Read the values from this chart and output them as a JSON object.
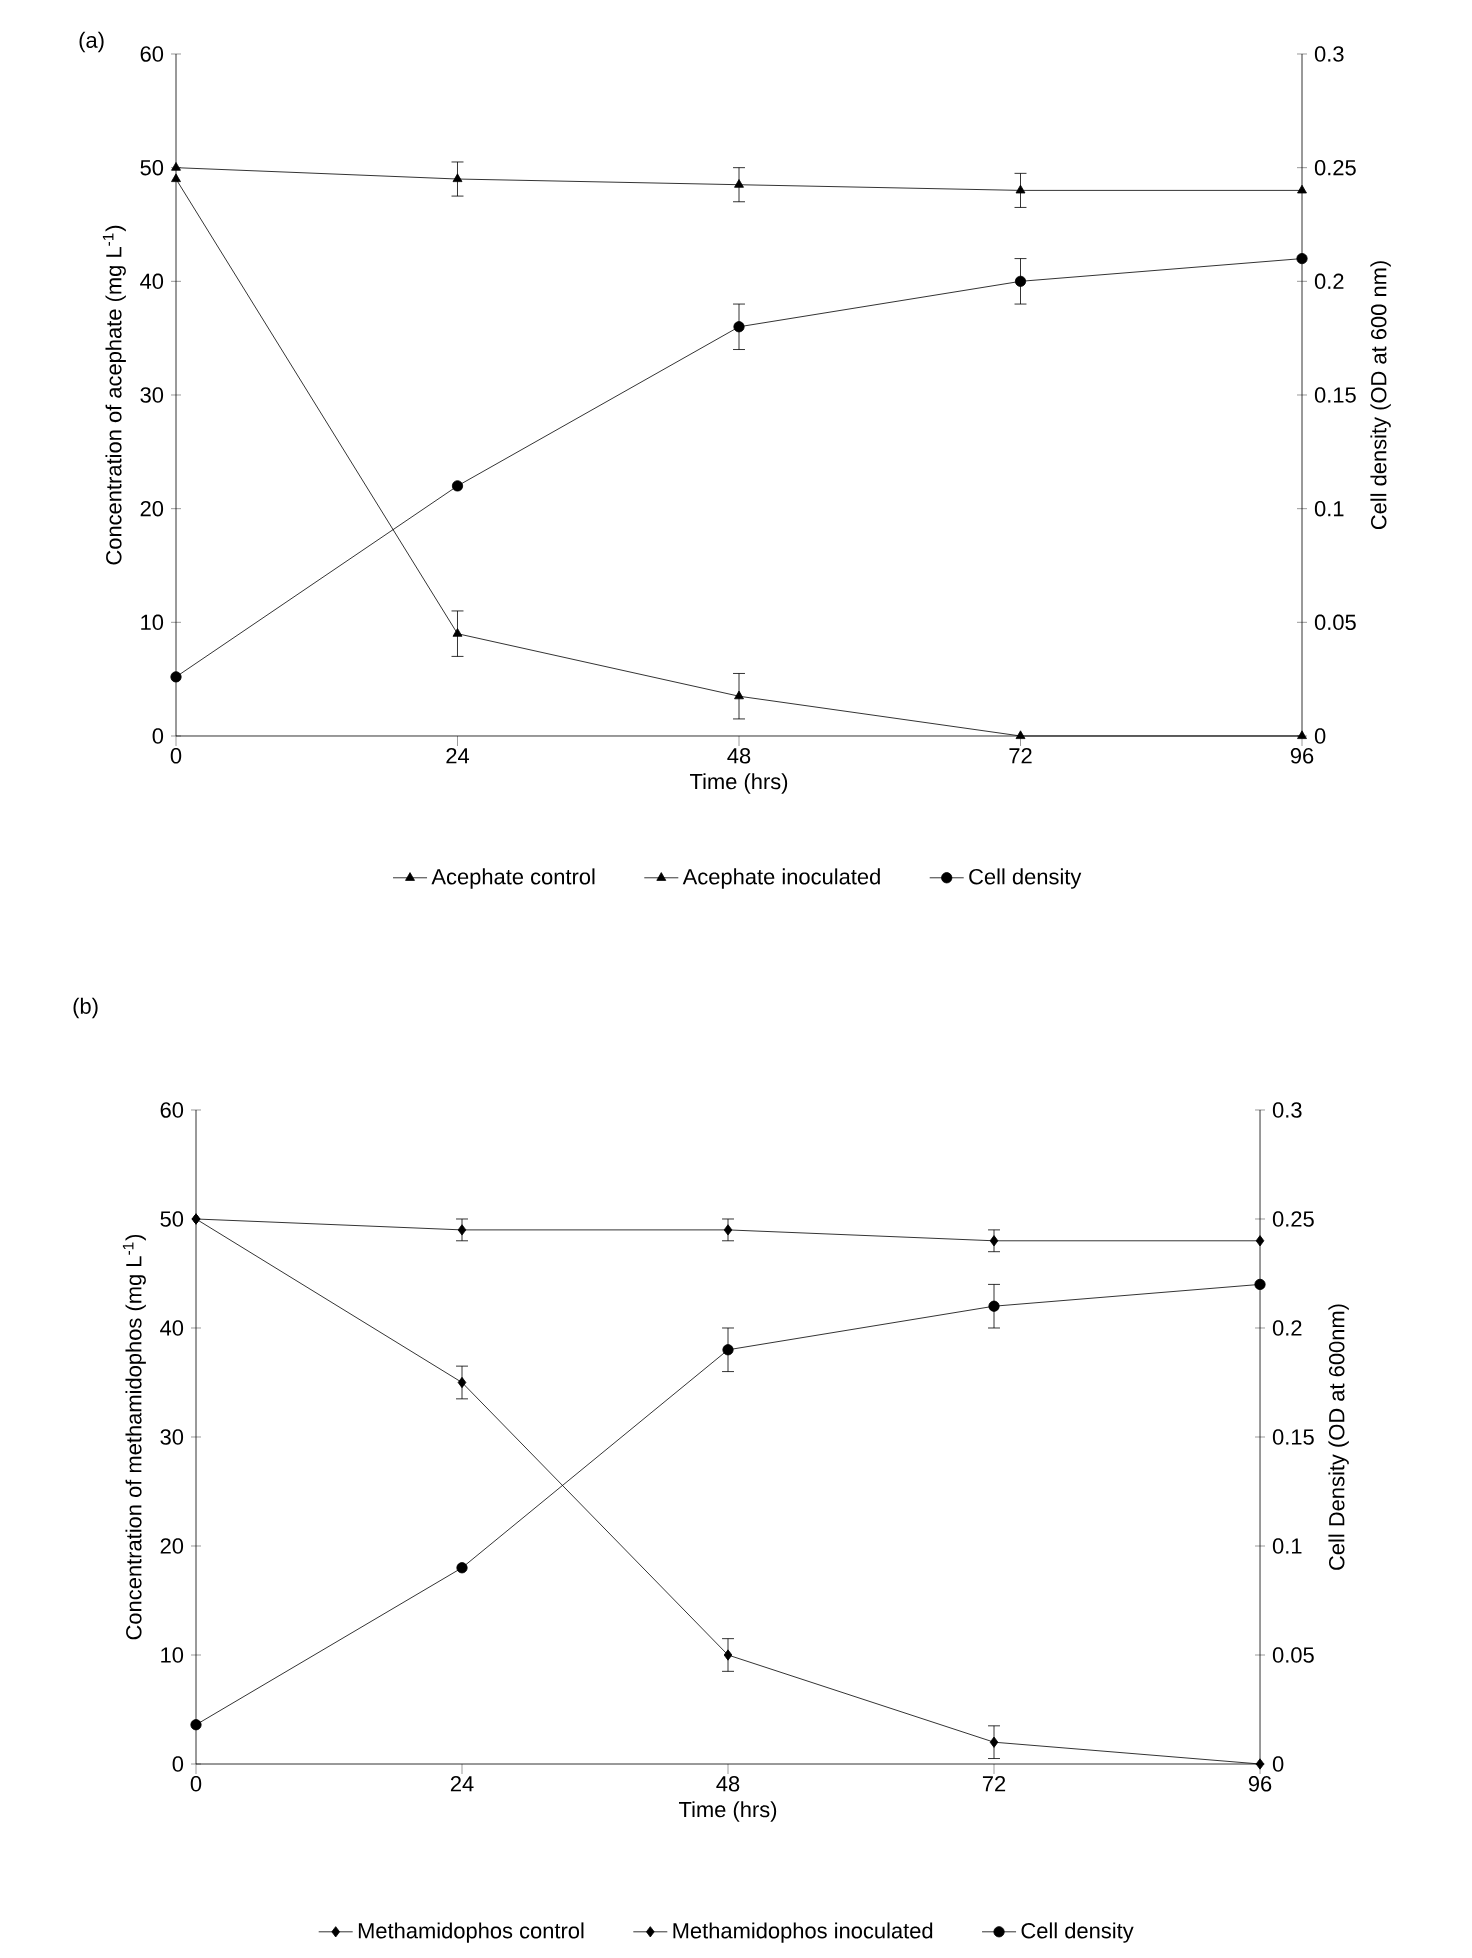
{
  "chart_data": [
    {
      "type": "line",
      "title": "(a)",
      "xlabel": "Time (hrs)",
      "ylabel": "Concentration of acephate (mg L$^{-1}$)",
      "y2label": "Cell density (OD at 600 nm)",
      "x": [
        0,
        24,
        48,
        72,
        96
      ],
      "xlim": [
        0,
        96
      ],
      "xticks": [
        0,
        24,
        48,
        72,
        96
      ],
      "ylim": [
        0,
        60
      ],
      "yticks": [
        0,
        10,
        20,
        30,
        40,
        50,
        60
      ],
      "y2lim": [
        0,
        0.3
      ],
      "y2ticks": [
        0,
        0.05,
        0.1,
        0.15,
        0.2,
        0.25,
        0.3
      ],
      "grid": false,
      "legend": "bottom",
      "line_style": "solid",
      "series": [
        {
          "name": "Acephate control",
          "color": "#000000",
          "marker": "triangle",
          "values": [
            50,
            49,
            48.5,
            48,
            48
          ],
          "errors": [
            null,
            1.5,
            1.5,
            1.5,
            null
          ]
        },
        {
          "name": "Acephate inoculated",
          "color": "#000000",
          "marker": "triangle",
          "values": [
            49,
            9,
            3.5,
            0,
            0
          ],
          "errors": [
            null,
            2,
            2,
            null,
            null
          ]
        },
        {
          "name": "Cell density",
          "color": "#000000",
          "marker": "circle",
          "axis": "y2",
          "values": [
            0.026,
            0.11,
            0.18,
            0.2,
            0.21
          ],
          "errors": [
            null,
            null,
            0.01,
            0.01,
            null
          ]
        }
      ]
    },
    {
      "type": "line",
      "title": "(b)",
      "xlabel": "Time (hrs)",
      "ylabel": "Concentration of methamidophos (mg L$^{-1}$)",
      "y2label": "Cell Density (OD at 600nm)",
      "x": [
        0,
        24,
        48,
        72,
        96
      ],
      "xlim": [
        0,
        96
      ],
      "xticks": [
        0,
        24,
        48,
        72,
        96
      ],
      "ylim": [
        0,
        60
      ],
      "yticks": [
        0,
        10,
        20,
        30,
        40,
        50,
        60
      ],
      "y2lim": [
        0,
        0.3
      ],
      "y2ticks": [
        0,
        0.05,
        0.1,
        0.15,
        0.2,
        0.25,
        0.3
      ],
      "grid": false,
      "legend": "bottom",
      "line_style": "solid",
      "series": [
        {
          "name": "Methamidophos control",
          "color": "#000000",
          "marker": "diamond",
          "values": [
            50,
            49,
            49,
            48,
            48
          ],
          "errors": [
            null,
            1,
            1,
            1,
            null
          ]
        },
        {
          "name": "Methamidophos inoculated",
          "color": "#000000",
          "marker": "diamond",
          "values": [
            50,
            35,
            10,
            2,
            0
          ],
          "errors": [
            null,
            1.5,
            1.5,
            1.5,
            null
          ]
        },
        {
          "name": "Cell density",
          "color": "#000000",
          "marker": "circle",
          "axis": "y2",
          "values": [
            0.018,
            0.09,
            0.19,
            0.21,
            0.22
          ],
          "errors": [
            null,
            null,
            0.01,
            0.01,
            null
          ]
        }
      ]
    }
  ]
}
